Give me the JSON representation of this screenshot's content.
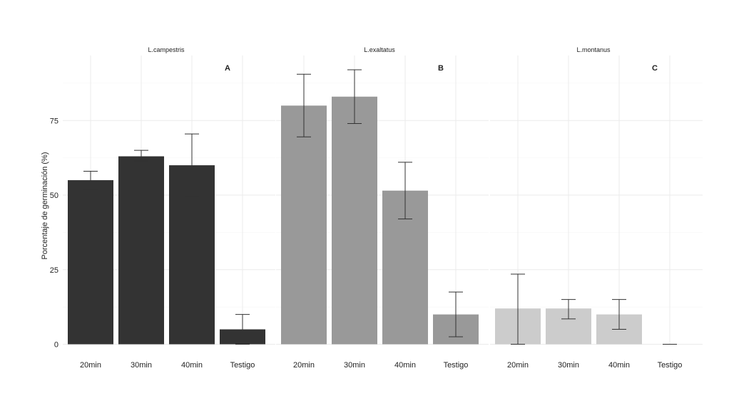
{
  "chart_data": {
    "type": "bar",
    "ylabel": "Porcentaje de germinación (%)",
    "xlabel": "",
    "ylim": [
      0,
      95
    ],
    "yticks": [
      0,
      25,
      50,
      75
    ],
    "grid": true,
    "categories": [
      "20min",
      "30min",
      "40min",
      "Testigo"
    ],
    "panels": [
      {
        "name": "L.campestris",
        "tag": "A",
        "color": "#333333",
        "values": [
          55,
          63,
          60,
          5
        ],
        "err_low": [
          52,
          61.5,
          49.5,
          0
        ],
        "err_high": [
          58,
          65,
          70.5,
          10
        ]
      },
      {
        "name": "L.exaltatus",
        "tag": "B",
        "color": "#999999",
        "values": [
          80,
          83,
          51.5,
          10
        ],
        "err_low": [
          69.5,
          74,
          42,
          2.5
        ],
        "err_high": [
          90.5,
          92,
          61,
          17.5
        ]
      },
      {
        "name": "L.montanus",
        "tag": "C",
        "color": "#cccccc",
        "values": [
          12,
          12,
          10,
          0
        ],
        "err_low": [
          0,
          8.5,
          5,
          0
        ],
        "err_high": [
          23.5,
          15,
          15,
          0
        ]
      }
    ]
  }
}
